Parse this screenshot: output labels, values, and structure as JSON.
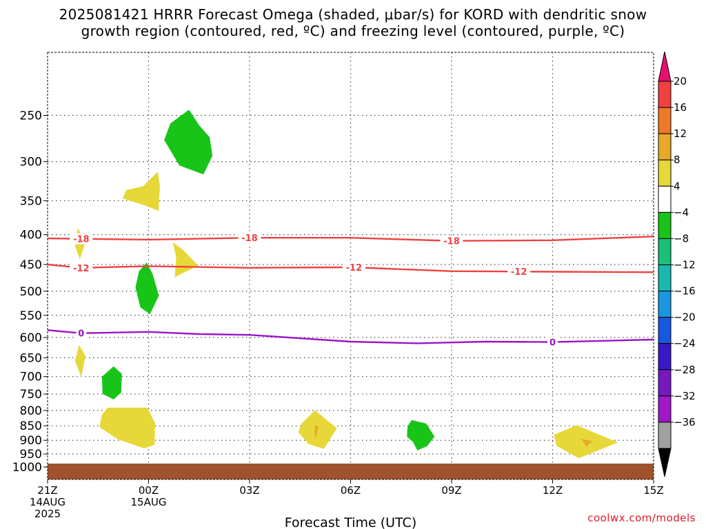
{
  "title": {
    "line1": "2025081421 HRRR Forecast Omega (shaded, μbar/s) for KORD with dendritic snow",
    "line2": "growth region (contoured, red, ºC) and freezing level (contoured, purple, ºC)"
  },
  "credit": "coolwx.com/models",
  "chart_data": {
    "type": "time-height cross section",
    "x_axis": {
      "label": "Forecast Time (UTC)",
      "range_hours_from_21Z14AUG": [
        0,
        18
      ],
      "ticks": [
        {
          "hour": 0,
          "lines": [
            "21Z",
            "14AUG",
            "2025"
          ]
        },
        {
          "hour": 3,
          "lines": [
            "00Z",
            "15AUG"
          ]
        },
        {
          "hour": 6,
          "lines": [
            "03Z"
          ]
        },
        {
          "hour": 9,
          "lines": [
            "06Z"
          ]
        },
        {
          "hour": 12,
          "lines": [
            "09Z"
          ]
        },
        {
          "hour": 15,
          "lines": [
            "12Z"
          ]
        },
        {
          "hour": 18,
          "lines": [
            "15Z"
          ]
        }
      ]
    },
    "y_axis": {
      "units": "mb",
      "scale": "log-pressure",
      "range": [
        1050,
        195
      ],
      "ticks": [
        250,
        300,
        350,
        400,
        450,
        500,
        550,
        600,
        650,
        700,
        750,
        800,
        850,
        900,
        950,
        1000
      ],
      "grid": "dotted"
    },
    "colorbar": {
      "label_values": [
        "20",
        "16",
        "12",
        "8",
        "4",
        "−4",
        "−8",
        "−12",
        "−16",
        "−20",
        "−24",
        "−28",
        "−32",
        "−36"
      ],
      "colors": [
        "#e8106e",
        "#f04040",
        "#f07826",
        "#e8a828",
        "#e6d838",
        "#ffffff",
        "#18c418",
        "#18c078",
        "#18b8b0",
        "#1898e0",
        "#1858e0",
        "#3a18c8",
        "#7818c0",
        "#a018c8",
        "#a0a0a0",
        "#000000"
      ]
    },
    "contours": [
      {
        "name": "dendritic -18",
        "color": "#f04040",
        "label": "-18",
        "points": [
          [
            0,
            406
          ],
          [
            3,
            408
          ],
          [
            6,
            405
          ],
          [
            9,
            405
          ],
          [
            12,
            410
          ],
          [
            15,
            409
          ],
          [
            18,
            403
          ]
        ],
        "labels_at_hour": [
          1.0,
          6.0,
          12.0
        ]
      },
      {
        "name": "dendritic -12",
        "color": "#f04040",
        "label": "-12",
        "points": [
          [
            0,
            450
          ],
          [
            1,
            456
          ],
          [
            3,
            453
          ],
          [
            6,
            456
          ],
          [
            9,
            455
          ],
          [
            12,
            462
          ],
          [
            15,
            463
          ],
          [
            18,
            464
          ]
        ],
        "labels_at_hour": [
          1.0,
          9.1,
          14.0
        ]
      },
      {
        "name": "freezing level",
        "color": "#9a14c8",
        "label": "0",
        "points": [
          [
            0,
            583
          ],
          [
            1,
            590
          ],
          [
            3,
            587
          ],
          [
            4.5,
            592
          ],
          [
            6,
            594
          ],
          [
            9,
            610
          ],
          [
            11,
            614
          ],
          [
            13,
            610
          ],
          [
            15,
            611
          ],
          [
            18,
            605
          ]
        ],
        "labels_at_hour": [
          1.0,
          15.0
        ]
      }
    ],
    "shaded_regions": [
      {
        "bin": "4 to 8",
        "color": "#e6d838",
        "hour_center": 1.0,
        "pressure_center": 415
      },
      {
        "bin": "4 to 8",
        "color": "#e6d838",
        "hour_center": 2.7,
        "pressure_center": 345
      },
      {
        "bin": "4 to 8",
        "color": "#e6d838",
        "hour_center": 3.9,
        "pressure_center": 440
      },
      {
        "bin": "4 to 8",
        "color": "#e6d838",
        "hour_center": 1.0,
        "pressure_center": 665
      },
      {
        "bin": "4 to 8",
        "color": "#e6d838",
        "hour_center": 2.5,
        "pressure_center": 875
      },
      {
        "bin": "4 to 8",
        "color": "#e6d838",
        "hour_center": 8.0,
        "pressure_center": 870
      },
      {
        "bin": "8 to 12",
        "color": "#e8a828",
        "hour_center": 8.0,
        "pressure_center": 870
      },
      {
        "bin": "4 to 8",
        "color": "#e6d838",
        "hour_center": 16.0,
        "pressure_center": 910
      },
      {
        "bin": "8 to 12",
        "color": "#e8a828",
        "hour_center": 16.0,
        "pressure_center": 900
      },
      {
        "bin": "-4 to -8",
        "color": "#18c418",
        "hour_center": 4.2,
        "pressure_center": 290
      },
      {
        "bin": "-4 to -8",
        "color": "#18c418",
        "hour_center": 3.0,
        "pressure_center": 495
      },
      {
        "bin": "-4 to -8",
        "color": "#18c418",
        "hour_center": 1.9,
        "pressure_center": 710
      },
      {
        "bin": "-4 to -8",
        "color": "#18c418",
        "hour_center": 11.0,
        "pressure_center": 875
      }
    ],
    "ground": {
      "color": "#a0522d",
      "below_pressure": 1000
    }
  }
}
